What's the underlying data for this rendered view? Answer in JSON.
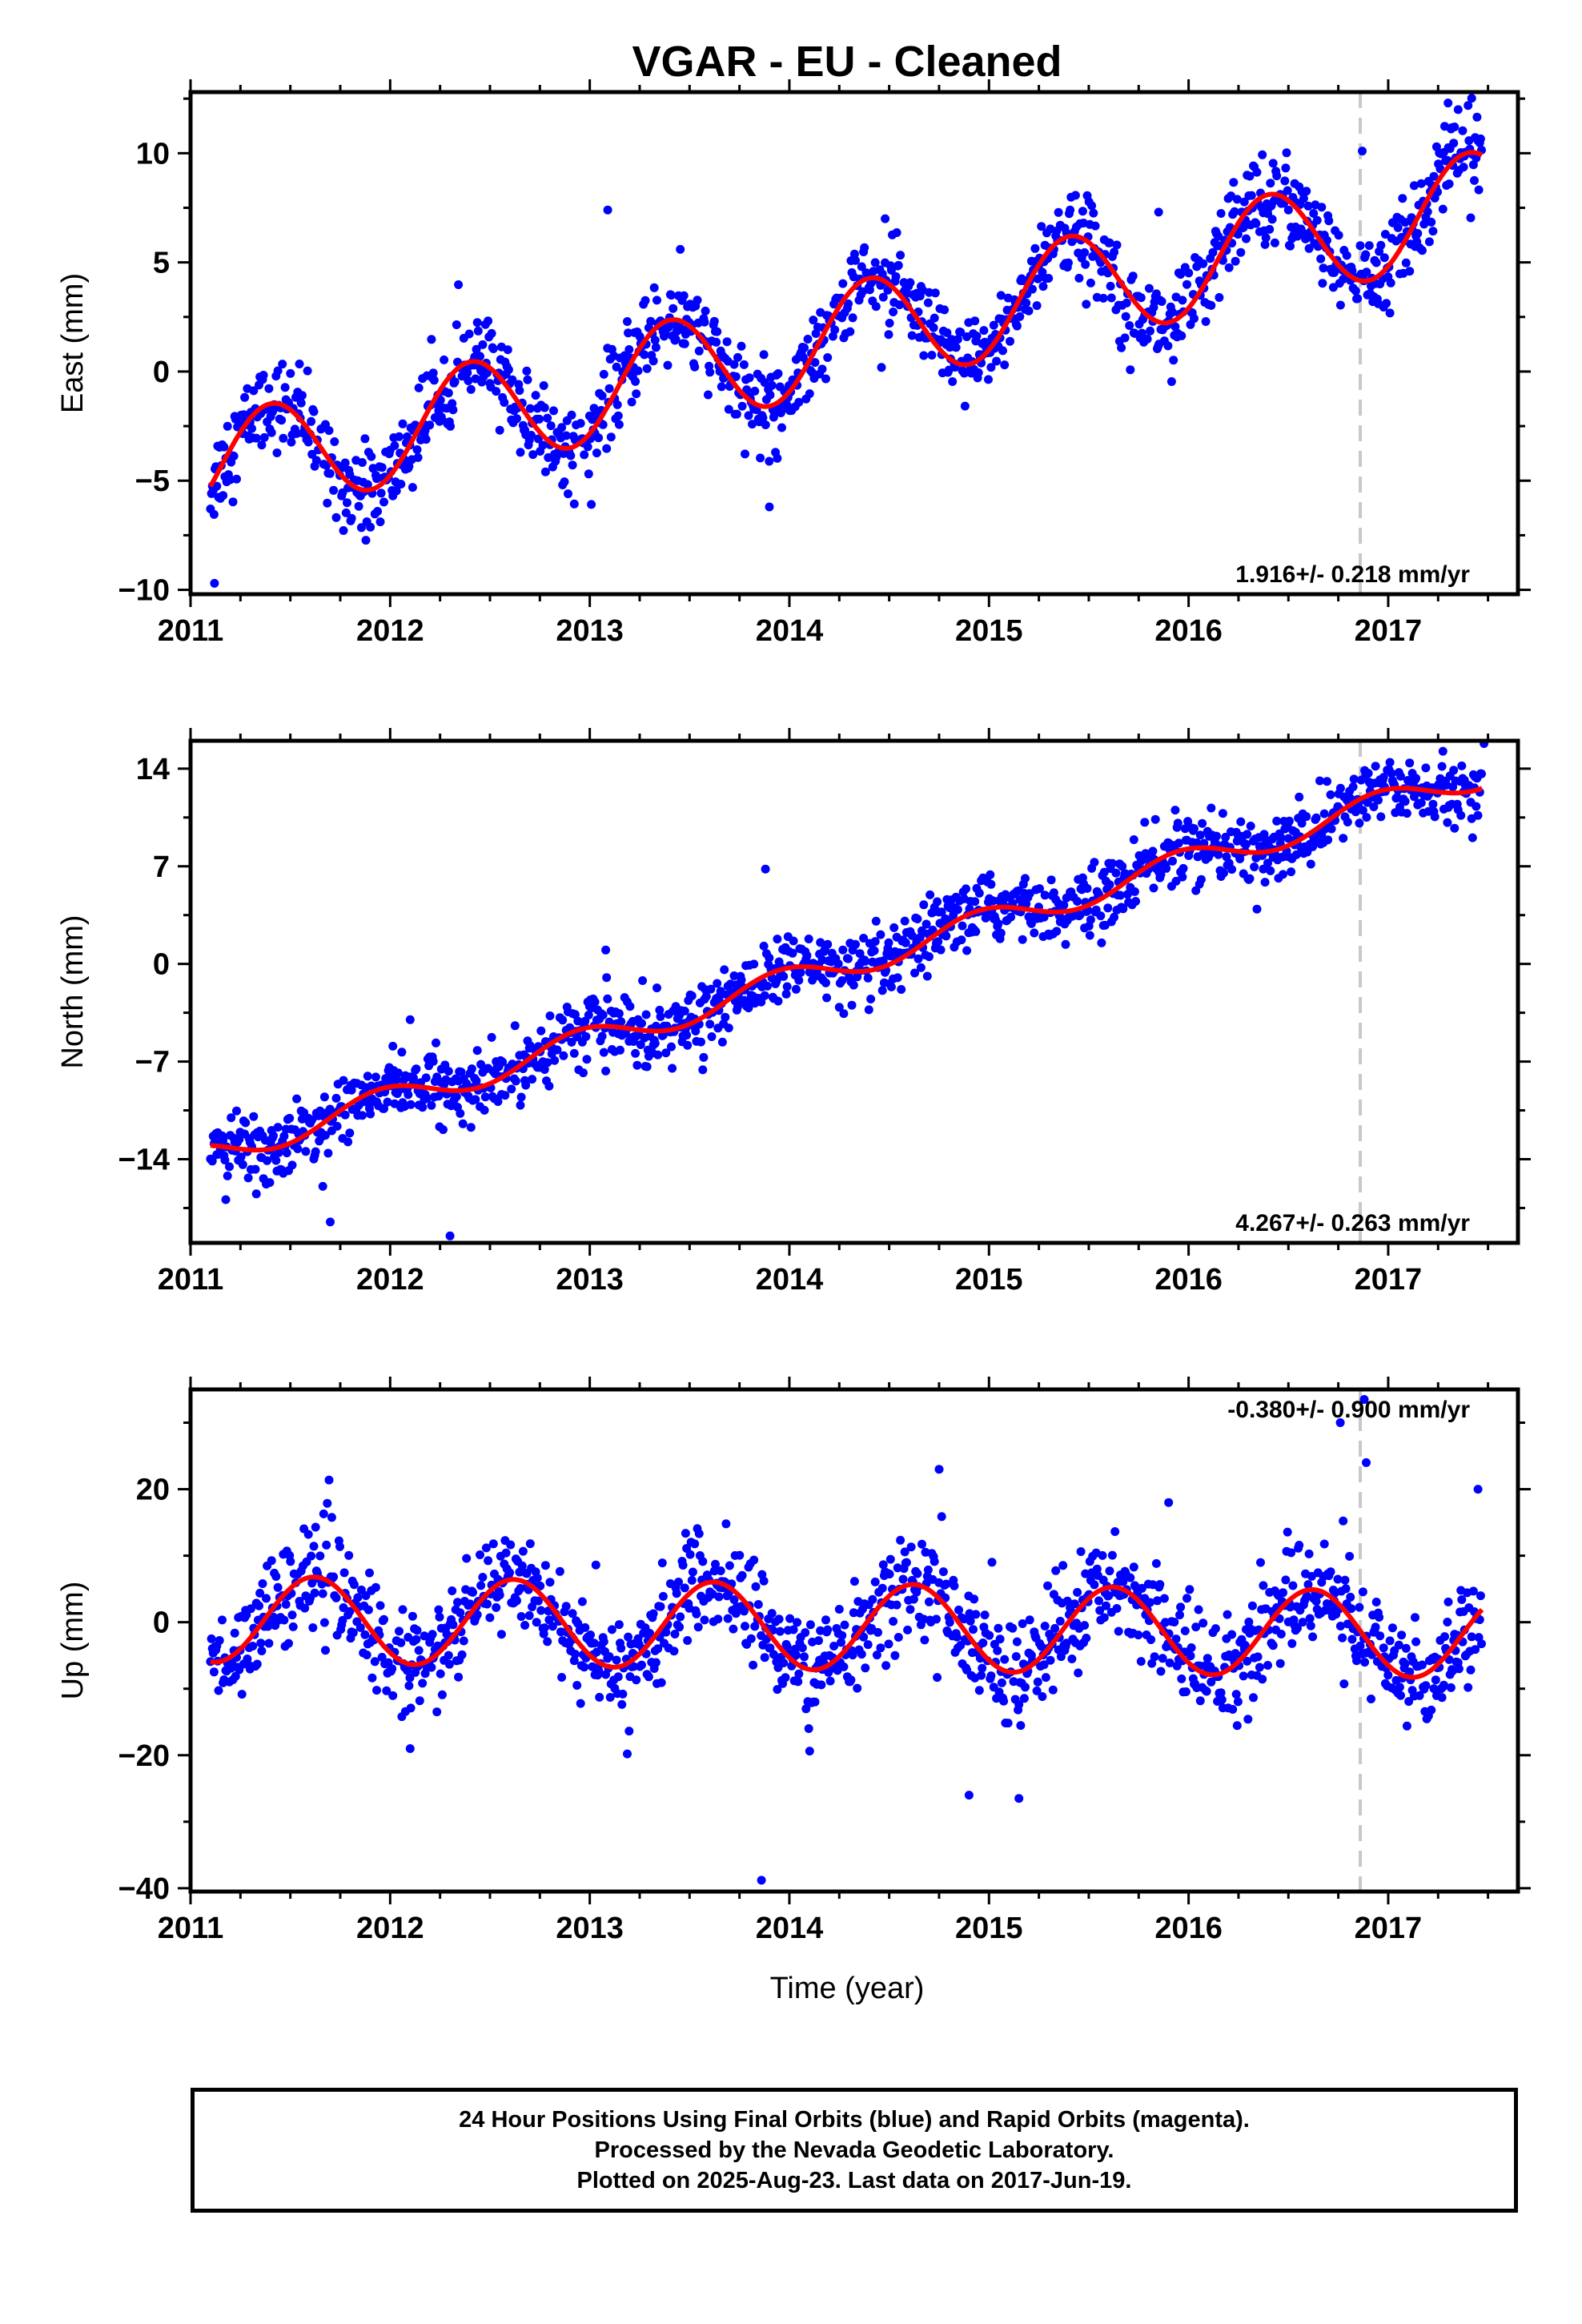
{
  "title": "VGAR  - EU - Cleaned",
  "colors": {
    "points": "#0000ff",
    "fit": "#ff0000",
    "marker": "#c8c8c8",
    "frame": "#000000"
  },
  "chart_data": [
    {
      "type": "scatter",
      "ylabel": "East (mm)",
      "xlabel": "",
      "xlim": [
        2011.0,
        2017.65
      ],
      "ylim": [
        -10.2,
        12.8
      ],
      "xticks": [
        "2011",
        "2012",
        "2013",
        "2014",
        "2015",
        "2016",
        "2017"
      ],
      "yticks": [
        "10",
        "5",
        "0",
        "−5",
        "−10"
      ],
      "ytick_values": [
        10,
        5,
        0,
        -5,
        -10
      ],
      "rate_label": "1.916+/- 0.218 mm/yr",
      "marker_year": 2016.86,
      "start_year": 2011.1,
      "end_year": 2017.47,
      "model": {
        "offset": -4.5,
        "rate": 1.916,
        "amplitude": 2.45,
        "peak_year": 2011.4,
        "scatter": 1.0
      },
      "outliers": [
        [
          2013.09,
          7.4
        ],
        [
          2014.48,
          7.0
        ],
        [
          2016.87,
          10.1
        ],
        [
          2017.3,
          12.3
        ],
        [
          2011.12,
          -9.7
        ],
        [
          2013.9,
          -6.2
        ],
        [
          2015.85,
          7.3
        ]
      ]
    },
    {
      "type": "scatter",
      "ylabel": "North (mm)",
      "xlabel": "",
      "xlim": [
        2011.0,
        2017.65
      ],
      "ylim": [
        -20.0,
        16.0
      ],
      "xticks": [
        "2011",
        "2012",
        "2013",
        "2014",
        "2015",
        "2016",
        "2017"
      ],
      "yticks": [
        "14",
        "7",
        "0",
        "−7",
        "−14"
      ],
      "ytick_values": [
        14,
        7,
        0,
        -7,
        -14
      ],
      "rate_label": "4.267+/- 0.263 mm/yr",
      "marker_year": 2016.86,
      "start_year": 2011.1,
      "end_year": 2017.47,
      "model": {
        "offset": -13.6,
        "rate": 4.267,
        "amplitude": 1.0,
        "peak_year": 2011.95,
        "scatter": 1.2
      },
      "outliers": [
        [
          2012.3,
          -19.5
        ],
        [
          2011.7,
          -18.5
        ],
        [
          2012.1,
          -4.0
        ],
        [
          2013.88,
          6.8
        ],
        [
          2013.08,
          1.0
        ],
        [
          2017.48,
          15.8
        ]
      ]
    },
    {
      "type": "scatter",
      "ylabel": "Up (mm)",
      "xlabel": "Time (year)",
      "xlim": [
        2011.0,
        2017.65
      ],
      "ylim": [
        -40.5,
        35.0
      ],
      "xticks": [
        "2011",
        "2012",
        "2013",
        "2014",
        "2015",
        "2016",
        "2017"
      ],
      "yticks": [
        "20",
        "0",
        "−20",
        "−40"
      ],
      "ytick_values": [
        20,
        0,
        -20,
        -40
      ],
      "rate_label": "-0.380+/- 0.900 mm/yr",
      "marker_year": 2016.86,
      "start_year": 2011.1,
      "end_year": 2017.47,
      "model": {
        "offset": 0.5,
        "rate": -0.38,
        "amplitude": 6.5,
        "peak_year": 2011.62,
        "scatter": 4.0
      },
      "outliers": [
        [
          2013.86,
          -38.8
        ],
        [
          2014.75,
          23.0
        ],
        [
          2014.9,
          -26.0
        ],
        [
          2015.15,
          -26.5
        ],
        [
          2016.76,
          30.0
        ],
        [
          2016.88,
          33.5
        ],
        [
          2016.89,
          24.0
        ],
        [
          2017.45,
          20.0
        ],
        [
          2012.1,
          -19.0
        ],
        [
          2015.9,
          18.0
        ]
      ]
    }
  ],
  "footer": {
    "line1": "24 Hour Positions Using Final Orbits (blue) and Rapid Orbits (magenta).",
    "line2": "Processed by the Nevada Geodetic Laboratory.",
    "line3": "Plotted on 2025-Aug-23. Last data on 2017-Jun-19."
  }
}
